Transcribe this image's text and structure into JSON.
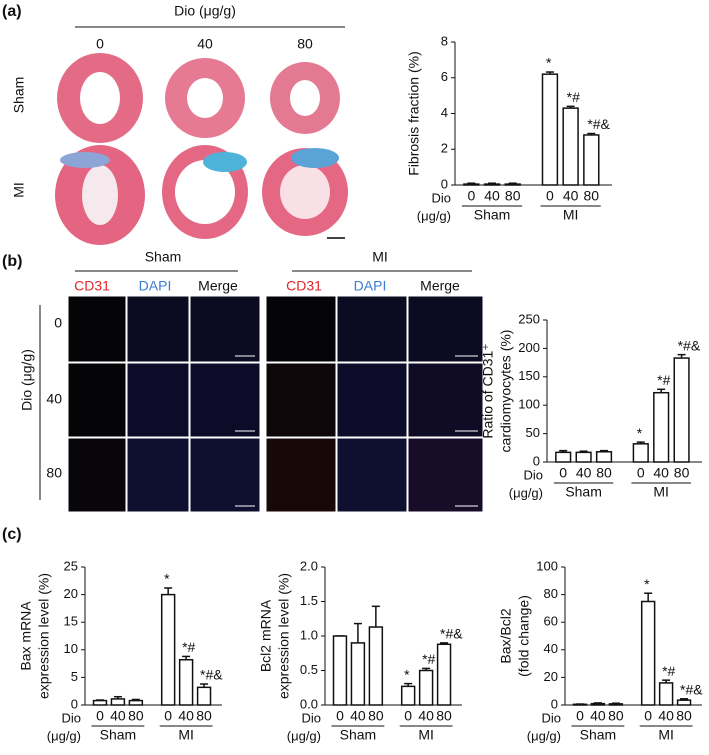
{
  "panels": {
    "a": {
      "label": "(a)",
      "dose_title": "Dio (μg/g)",
      "doses": [
        "0",
        "40",
        "80"
      ],
      "rows": [
        "Sham",
        "MI"
      ]
    },
    "b": {
      "label": "(b)",
      "groups": [
        "Sham",
        "MI"
      ],
      "channels": [
        "CD31",
        "DAPI",
        "Merge"
      ],
      "dose_title": "Dio (μg/g)",
      "doses": [
        "0",
        "40",
        "80"
      ]
    },
    "c": {
      "label": "(c)"
    }
  },
  "chart_data": [
    {
      "type": "bar",
      "y_label": [
        "Fibrosis fraction (%)"
      ],
      "x_label": [
        "Dio",
        "(μg/g)"
      ],
      "groups": [
        "Sham",
        "MI"
      ],
      "categories": [
        "0",
        "40",
        "80",
        "0",
        "40",
        "80"
      ],
      "values": [
        0.05,
        0.05,
        0.05,
        6.2,
        4.3,
        2.8
      ],
      "errors": [
        0.05,
        0.05,
        0.05,
        0.12,
        0.1,
        0.08
      ],
      "annotations": [
        null,
        null,
        null,
        "*",
        "*#",
        "*#&"
      ],
      "color": "#ffffff",
      "ylim": [
        0,
        8
      ],
      "yticks": [
        0,
        2,
        4,
        6,
        8
      ]
    },
    {
      "type": "bar",
      "y_label": [
        "Ratio of CD31⁺",
        "cardiomyocytes (%)"
      ],
      "x_label": [
        "Dio",
        "(μg/g)"
      ],
      "groups": [
        "Sham",
        "MI"
      ],
      "categories": [
        "0",
        "40",
        "80",
        "0",
        "40",
        "80"
      ],
      "values": [
        17,
        17,
        18,
        32,
        122,
        183
      ],
      "errors": [
        3,
        2,
        2,
        3,
        6,
        6
      ],
      "annotations": [
        null,
        null,
        null,
        "*",
        "*#",
        "*#&"
      ],
      "color": "#ffffff",
      "ylim": [
        0,
        250
      ],
      "yticks": [
        0,
        50,
        100,
        150,
        200,
        250
      ]
    },
    {
      "type": "bar",
      "y_label": [
        "Bax mRNA",
        "expression level (%)"
      ],
      "x_label": [
        "Dio",
        "(μg/g)"
      ],
      "groups": [
        "Sham",
        "MI"
      ],
      "categories": [
        "0",
        "40",
        "80",
        "0",
        "40",
        "80"
      ],
      "values": [
        0.8,
        1.1,
        0.8,
        20,
        8.2,
        3.2
      ],
      "errors": [
        0.1,
        0.4,
        0.2,
        1.2,
        0.6,
        0.6
      ],
      "annotations": [
        null,
        null,
        null,
        "*",
        "*#",
        "*#&"
      ],
      "color": "#ffffff",
      "ylim": [
        0,
        25
      ],
      "yticks": [
        0,
        5,
        10,
        15,
        20,
        25
      ]
    },
    {
      "type": "bar",
      "y_label": [
        "Bcl2 mRNA",
        "expression level (%)"
      ],
      "x_label": [
        "Dio",
        "(μg/g)"
      ],
      "groups": [
        "Sham",
        "MI"
      ],
      "categories": [
        "0",
        "40",
        "80",
        "0",
        "40",
        "80"
      ],
      "values": [
        1.0,
        0.9,
        1.13,
        0.27,
        0.5,
        0.88
      ],
      "errors": [
        0,
        0.28,
        0.3,
        0.04,
        0.03,
        0.02
      ],
      "annotations": [
        null,
        null,
        null,
        "*",
        "*#",
        "*#&"
      ],
      "color": "#ffffff",
      "ylim": [
        0,
        2
      ],
      "yticks": [
        {
          "value": 0,
          "label": "0.0"
        },
        0.5,
        {
          "value": 1,
          "label": "1.0"
        },
        1.5,
        {
          "value": 2,
          "label": "2.0"
        }
      ]
    },
    {
      "type": "bar",
      "y_label": [
        "Bax/Bcl2",
        "(fold change)"
      ],
      "x_label": [
        "Dio",
        "(μg/g)"
      ],
      "groups": [
        "Sham",
        "MI"
      ],
      "categories": [
        "0",
        "40",
        "80",
        "0",
        "40",
        "80"
      ],
      "values": [
        0.5,
        1,
        0.8,
        75,
        16,
        3.5
      ],
      "errors": [
        0.2,
        0.5,
        0.5,
        6,
        2,
        1
      ],
      "annotations": [
        null,
        null,
        null,
        "*",
        "*#",
        "*#&"
      ],
      "color": "#ffffff",
      "ylim": [
        0,
        100
      ],
      "yticks": [
        0,
        20,
        40,
        60,
        80,
        100
      ]
    }
  ]
}
